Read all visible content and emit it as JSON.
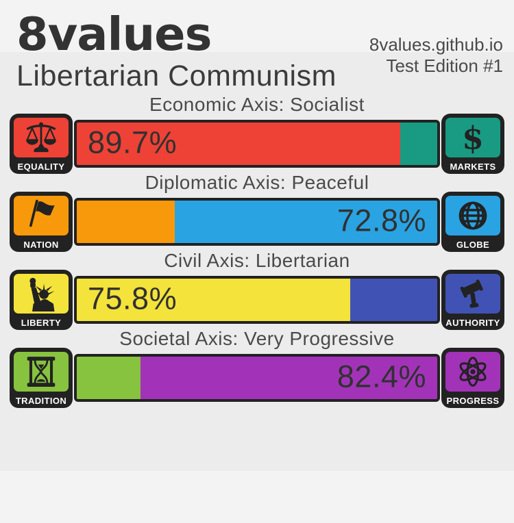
{
  "page": {
    "outer_bg": "#f3f3f3",
    "card_bg": "#ececec",
    "dark": "#222222"
  },
  "header": {
    "title": "8values",
    "subtitle": "Libertarian Communism",
    "site": "8values.github.io",
    "edition": "Test Edition #1"
  },
  "axes": [
    {
      "title": "Economic Axis: Socialist",
      "left": {
        "label": "EQUALITY",
        "icon": "scales-icon",
        "color": "#ee4236"
      },
      "right": {
        "label": "MARKETS",
        "icon": "dollar-icon",
        "color": "#199b83"
      },
      "left_pct": 89.7,
      "pct_label": "89.7%",
      "label_side": "left"
    },
    {
      "title": "Diplomatic Axis: Peaceful",
      "left": {
        "label": "NATION",
        "icon": "flag-icon",
        "color": "#f8990b"
      },
      "right": {
        "label": "GLOBE",
        "icon": "globe-icon",
        "color": "#2aa3e2"
      },
      "left_pct": 27.2,
      "pct_label": "72.8%",
      "label_side": "right"
    },
    {
      "title": "Civil Axis: Libertarian",
      "left": {
        "label": "LIBERTY",
        "icon": "liberty-icon",
        "color": "#f4e33b"
      },
      "right": {
        "label": "AUTHORITY",
        "icon": "gavel-icon",
        "color": "#4053b5"
      },
      "left_pct": 75.8,
      "pct_label": "75.8%",
      "label_side": "left"
    },
    {
      "title": "Societal Axis: Very Progressive",
      "left": {
        "label": "TRADITION",
        "icon": "hourglass-icon",
        "color": "#87c33f"
      },
      "right": {
        "label": "PROGRESS",
        "icon": "atom-icon",
        "color": "#a233b8"
      },
      "left_pct": 17.6,
      "pct_label": "82.4%",
      "label_side": "right"
    }
  ]
}
